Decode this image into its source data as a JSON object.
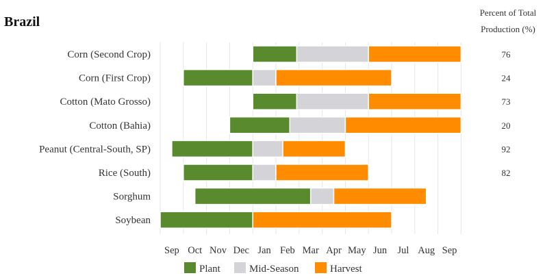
{
  "chart_data": {
    "type": "bar",
    "subtype": "crop-calendar-gantt",
    "title": "Brazil",
    "side_header": [
      "Percent of Total",
      "Production (%)"
    ],
    "months": [
      "Sep",
      "Oct",
      "Nov",
      "Dec",
      "Jan",
      "Feb",
      "Mar",
      "Apr",
      "May",
      "Jun",
      "Jul",
      "Aug",
      "Sep"
    ],
    "x_unit": "months from start of Sep",
    "xlim": [
      0,
      13
    ],
    "grid": true,
    "legend_position": "bottom",
    "legend": [
      {
        "label": "Plant",
        "color": "#5a8a2e"
      },
      {
        "label": "Mid-Season",
        "color": "#d4d4d8"
      },
      {
        "label": "Harvest",
        "color": "#ff8c00"
      }
    ],
    "crops": [
      {
        "name": "Corn (Second Crop)",
        "pct": "76",
        "segments": [
          {
            "phase": "Plant",
            "start": 4.0,
            "end": 5.9
          },
          {
            "phase": "Mid-Season",
            "start": 5.9,
            "end": 9.0
          },
          {
            "phase": "Harvest",
            "start": 9.0,
            "end": 13.0
          }
        ]
      },
      {
        "name": "Corn (First Crop)",
        "pct": "24",
        "segments": [
          {
            "phase": "Plant",
            "start": 1.0,
            "end": 4.0
          },
          {
            "phase": "Mid-Season",
            "start": 4.0,
            "end": 5.0
          },
          {
            "phase": "Harvest",
            "start": 5.0,
            "end": 10.0
          }
        ]
      },
      {
        "name": "Cotton (Mato Grosso)",
        "pct": "73",
        "segments": [
          {
            "phase": "Plant",
            "start": 4.0,
            "end": 5.9
          },
          {
            "phase": "Mid-Season",
            "start": 5.9,
            "end": 9.0
          },
          {
            "phase": "Harvest",
            "start": 9.0,
            "end": 13.0
          }
        ]
      },
      {
        "name": "Cotton (Bahia)",
        "pct": "20",
        "segments": [
          {
            "phase": "Plant",
            "start": 3.0,
            "end": 5.6
          },
          {
            "phase": "Mid-Season",
            "start": 5.6,
            "end": 8.0
          },
          {
            "phase": "Harvest",
            "start": 8.0,
            "end": 13.0
          }
        ]
      },
      {
        "name": "Peanut (Central-South, SP)",
        "pct": "92",
        "segments": [
          {
            "phase": "Plant",
            "start": 0.5,
            "end": 4.0
          },
          {
            "phase": "Mid-Season",
            "start": 4.0,
            "end": 5.3
          },
          {
            "phase": "Harvest",
            "start": 5.3,
            "end": 8.0
          }
        ]
      },
      {
        "name": "Rice (South)",
        "pct": "82",
        "segments": [
          {
            "phase": "Plant",
            "start": 1.0,
            "end": 4.0
          },
          {
            "phase": "Mid-Season",
            "start": 4.0,
            "end": 5.0
          },
          {
            "phase": "Harvest",
            "start": 5.0,
            "end": 9.0
          }
        ]
      },
      {
        "name": "Sorghum",
        "pct": "",
        "segments": [
          {
            "phase": "Plant",
            "start": 1.5,
            "end": 6.5
          },
          {
            "phase": "Mid-Season",
            "start": 6.5,
            "end": 7.5
          },
          {
            "phase": "Harvest",
            "start": 7.5,
            "end": 11.5
          }
        ]
      },
      {
        "name": "Soybean",
        "pct": "",
        "segments": [
          {
            "phase": "Plant",
            "start": 0.0,
            "end": 4.0
          },
          {
            "phase": "Harvest",
            "start": 4.0,
            "end": 10.0
          }
        ]
      }
    ]
  }
}
